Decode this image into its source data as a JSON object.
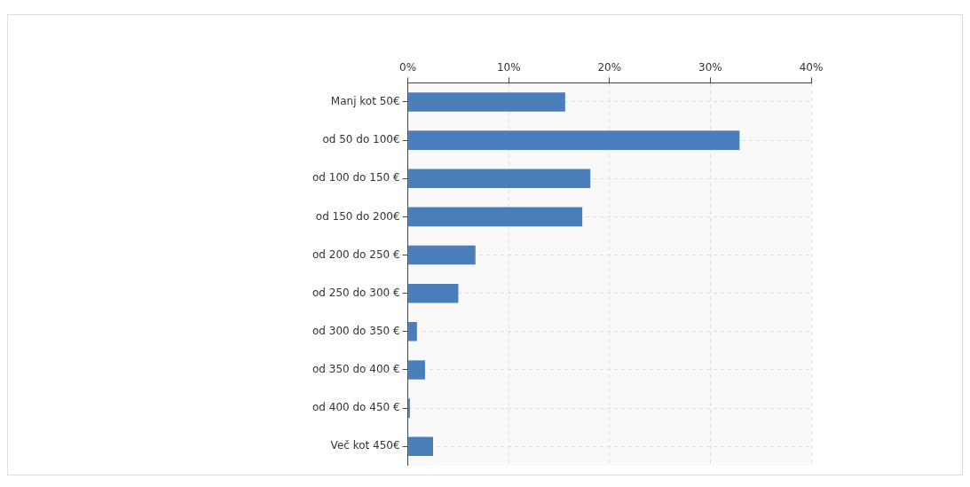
{
  "chart_data": {
    "type": "bar",
    "orientation": "horizontal",
    "categories": [
      "Manj kot 50€",
      "od 50 do 100€",
      "od 100 do 150 €",
      "od 150 do 200€",
      "od 200 do 250 €",
      "od 250 do 300 €",
      "od 300 do 350 €",
      "od 350 do 400 €",
      "od 400 do 450 €",
      "Več kot 450€"
    ],
    "values": [
      15.6,
      32.9,
      18.1,
      17.3,
      6.7,
      5.0,
      0.9,
      1.7,
      0.2,
      2.5
    ],
    "color": "#4a7ebb",
    "xlim": [
      0,
      40
    ],
    "xticks": [
      {
        "value": 0,
        "label": "0%"
      },
      {
        "value": 10,
        "label": "10%"
      },
      {
        "value": 20,
        "label": "20%"
      },
      {
        "value": 30,
        "label": "30%"
      },
      {
        "value": 40,
        "label": "40%"
      }
    ],
    "grid": true,
    "legend": false
  }
}
